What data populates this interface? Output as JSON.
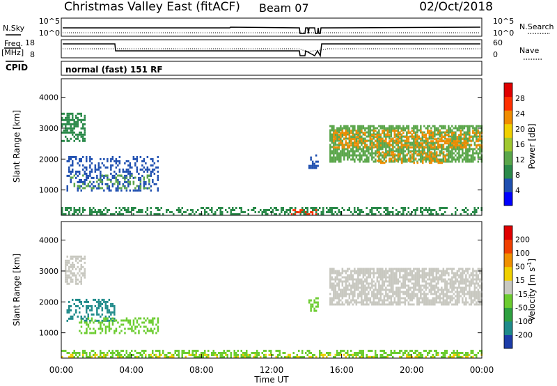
{
  "header": {
    "title": "Christmas Valley East (fitACF)",
    "beam": "Beam 07",
    "date": "02/Oct/2018"
  },
  "params": {
    "nsky_label": "N.Sky",
    "nsearch_label": "N.Search",
    "freq_label_1": "Freq.",
    "freq_label_2": "[MHz]",
    "nave_label": "Nave",
    "cpid_label": "CPID",
    "cpid_value": "normal (fast) 151 RF",
    "noise_ticks": [
      "10^5",
      "10^0"
    ],
    "noise_right_ticks": [
      "10^5",
      "10^0"
    ],
    "freq_ticks": [
      "18",
      "8"
    ],
    "nave_ticks": [
      "60",
      "0"
    ]
  },
  "chart_data": [
    {
      "type": "heatmap",
      "name": "power",
      "ylabel": "Slant Range [km]",
      "yticks": [
        "4000",
        "3000",
        "2000",
        "1000"
      ],
      "ylim": [
        180,
        4600
      ],
      "colorbar_label": "Power [dB]",
      "colorbar_ticks": [
        "28",
        "24",
        "20",
        "16",
        "12",
        "8",
        "4"
      ],
      "colorbar_colors": [
        "#0000ff",
        "#1f4fb0",
        "#2b8a4a",
        "#5aa64a",
        "#a0c830",
        "#f0d000",
        "#f08c00",
        "#ff3000",
        "#e00000"
      ],
      "regions": [
        {
          "t0": 0.0,
          "t1": 1.3,
          "r0": 2600,
          "r1": 3500,
          "color": "#2b8a4a",
          "density": 0.6
        },
        {
          "t0": 0.3,
          "t1": 5.5,
          "r0": 1000,
          "r1": 2100,
          "color": "#1f4fb0",
          "density": 0.35
        },
        {
          "t0": 0.5,
          "t1": 5.0,
          "r0": 1050,
          "r1": 1500,
          "color": "#5aa64a",
          "density": 0.25
        },
        {
          "t0": 0.0,
          "t1": 24.0,
          "r0": 200,
          "r1": 450,
          "color": "#2b8a4a",
          "density": 0.45
        },
        {
          "t0": 13.0,
          "t1": 14.5,
          "r0": 220,
          "r1": 380,
          "color": "#ff3000",
          "density": 0.45
        },
        {
          "t0": 15.3,
          "t1": 24.0,
          "r0": 1900,
          "r1": 3100,
          "color": "#5aa64a",
          "density": 0.7
        },
        {
          "t0": 15.5,
          "t1": 24.0,
          "r0": 2400,
          "r1": 2950,
          "color": "#f08c00",
          "density": 0.45
        },
        {
          "t0": 18.0,
          "t1": 22.0,
          "r0": 1900,
          "r1": 2250,
          "color": "#f08c00",
          "density": 0.35
        },
        {
          "t0": 14.1,
          "t1": 14.6,
          "r0": 1700,
          "r1": 2150,
          "color": "#1f4fb0",
          "density": 0.4
        }
      ]
    },
    {
      "type": "heatmap",
      "name": "velocity",
      "ylabel": "Slant Range [km]",
      "yticks": [
        "4000",
        "3000",
        "2000",
        "1000"
      ],
      "ylim": [
        180,
        4600
      ],
      "xlabel": "Time UT",
      "xticks": [
        "00:00",
        "04:00",
        "08:00",
        "12:00",
        "16:00",
        "20:00",
        "00:00"
      ],
      "xlim": [
        0,
        24
      ],
      "colorbar_label": "Velocity [m s^-1]",
      "colorbar_ticks": [
        "200",
        "100",
        "50",
        "15",
        "-15",
        "-50",
        "-100",
        "-200"
      ],
      "colorbar_colors": [
        "#1c3ca8",
        "#1f8a8a",
        "#2ea040",
        "#6ccc30",
        "#c8c8c0",
        "#f0d000",
        "#f09000",
        "#f04000",
        "#e00000"
      ],
      "regions": [
        {
          "t0": 0.2,
          "t1": 1.3,
          "r0": 2600,
          "r1": 3500,
          "color": "#c8c8c0",
          "density": 0.6
        },
        {
          "t0": 0.3,
          "t1": 3.0,
          "r0": 1400,
          "r1": 2100,
          "color": "#1f8a8a",
          "density": 0.4
        },
        {
          "t0": 1.0,
          "t1": 5.5,
          "r0": 1000,
          "r1": 1500,
          "color": "#6ccc30",
          "density": 0.35
        },
        {
          "t0": 0.0,
          "t1": 24.0,
          "r0": 200,
          "r1": 450,
          "color": "#6ccc30",
          "density": 0.45
        },
        {
          "t0": 0.0,
          "t1": 24.0,
          "r0": 200,
          "r1": 320,
          "color": "#f0d000",
          "density": 0.2
        },
        {
          "t0": 15.3,
          "t1": 24.0,
          "r0": 1900,
          "r1": 3100,
          "color": "#c8c8c0",
          "density": 0.75
        },
        {
          "t0": 14.1,
          "t1": 14.6,
          "r0": 1700,
          "r1": 2150,
          "color": "#6ccc30",
          "density": 0.4
        }
      ]
    }
  ]
}
